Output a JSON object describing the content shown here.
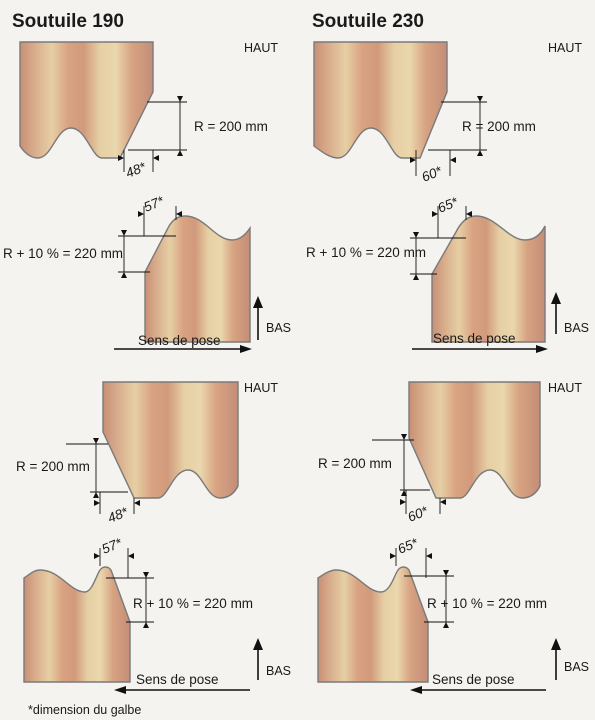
{
  "titles": {
    "left": "Soutuile 190",
    "right": "Soutuile 230"
  },
  "labels": {
    "haut": "HAUT",
    "bas": "BAS",
    "r_top": "R = 200 mm",
    "r_bottom": "R + 10 % = 220 mm",
    "sens": "Sens de pose"
  },
  "dims": {
    "left_top": "48*",
    "left_bottom": "57*",
    "right_top": "60*",
    "right_bottom": "65*"
  },
  "footnote": "*dimension du galbe",
  "colors": {
    "tile_edge": "#c98f74",
    "tile_mid": "#e2c8a0",
    "tile_band": "#d7a07f",
    "outline": "#7a7a7a",
    "ink": "#111111",
    "background": "#f4f3ef"
  }
}
